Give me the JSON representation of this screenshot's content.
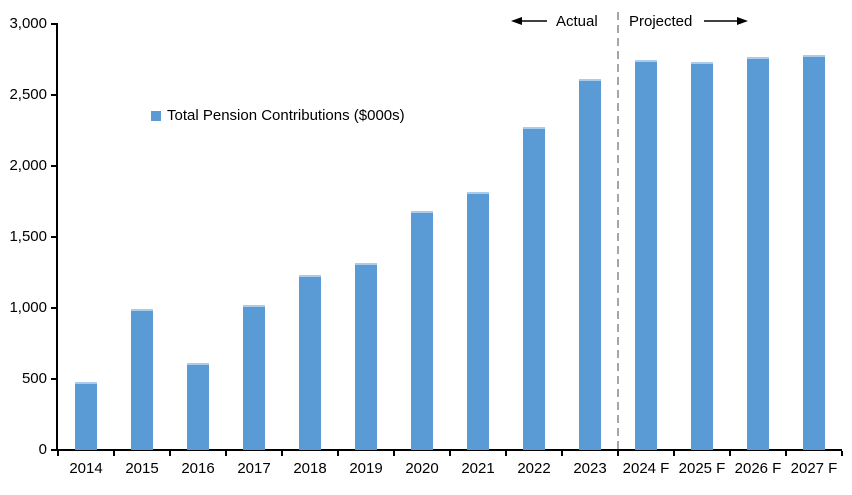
{
  "chart_data": {
    "type": "bar",
    "title": "",
    "legend": [
      "Total Pension Contributions ($000s)"
    ],
    "legend_position": "upper-left-inside",
    "categories": [
      "2014",
      "2015",
      "2016",
      "2017",
      "2018",
      "2019",
      "2020",
      "2021",
      "2022",
      "2023",
      "2024 F",
      "2025 F",
      "2026 F",
      "2027 F"
    ],
    "values": [
      480,
      990,
      615,
      1020,
      1235,
      1315,
      1685,
      1815,
      2275,
      2610,
      2750,
      2735,
      2770,
      2785
    ],
    "xlabel": "",
    "ylabel": "",
    "ylim": [
      0,
      3000
    ],
    "ytick_interval": 500,
    "ytick_labels": [
      "0",
      "500",
      "1,000",
      "1,500",
      "2,000",
      "2,500",
      "3,000"
    ],
    "grid": false,
    "bar_color": "#5B9BD5",
    "axis_color": "#000000",
    "divider": {
      "after_category": "2023",
      "style": "dashed",
      "color": "#A6A6A6"
    },
    "annotations": {
      "actual": "Actual",
      "projected": "Projected"
    }
  },
  "legend": {
    "label": "Total Pension Contributions ($000s)"
  },
  "annotations": {
    "actual": "Actual",
    "projected": "Projected"
  }
}
